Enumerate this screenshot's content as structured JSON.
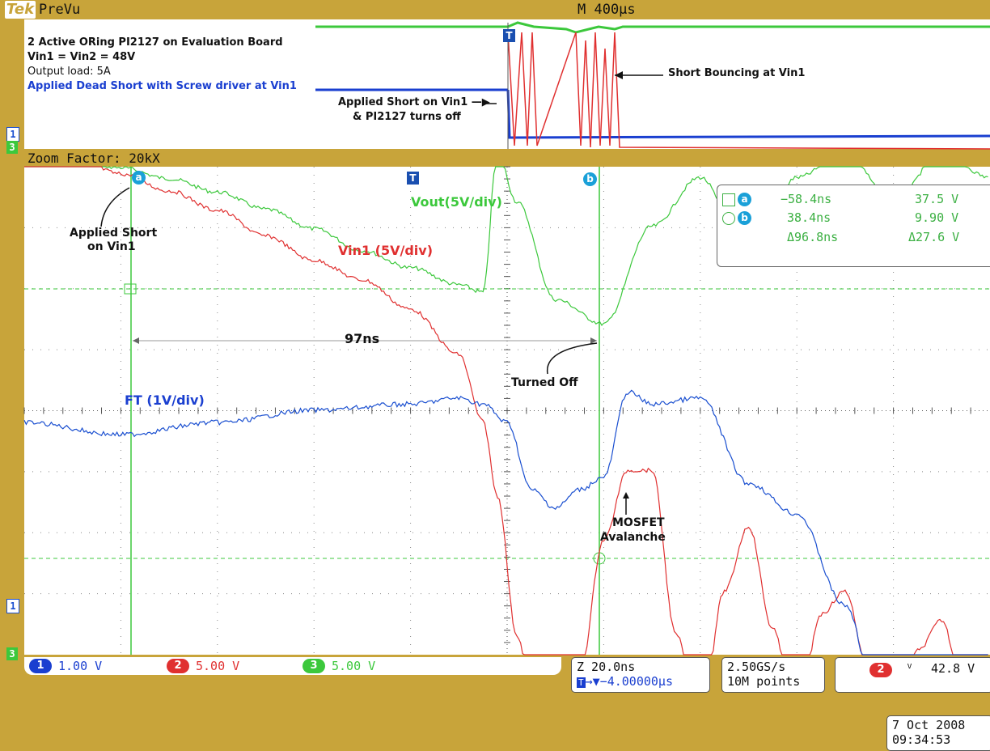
{
  "header": {
    "logo": "Tek",
    "mode": "PreVu",
    "timebase": "M 400µs"
  },
  "preview": {
    "notes": [
      "2 Active ORing PI2127 on Evaluation Board",
      "Vin1 = Vin2 = 48V",
      "Output load: 5A",
      "Applied Dead Short with Screw driver at Vin1"
    ],
    "annotation_short": [
      "Applied Short on Vin1 —▶",
      "& PI2127 turns off"
    ],
    "annotation_bounce": "Short Bouncing at Vin1"
  },
  "zoom_label": "Zoom Factor: 20kX",
  "annotations": {
    "applied_short": [
      "Applied Short",
      "on Vin1"
    ],
    "delay": "97ns",
    "turned_off": "Turned Off",
    "mosfet": [
      "MOSFET",
      "Avalanche"
    ]
  },
  "cursor_readout": {
    "a_marker": "a",
    "b_marker": "b",
    "a_time": "−58.4ns",
    "a_volt": "37.5 V",
    "b_time": "38.4ns",
    "b_volt": "9.90 V",
    "delta_time": "Δ96.8ns",
    "delta_volt": "Δ27.6 V"
  },
  "channels": [
    {
      "id": "1",
      "scale": "1.00 V",
      "color": "#1a4fd0"
    },
    {
      "id": "2",
      "scale": "5.00 V",
      "color": "#e03030"
    },
    {
      "id": "3",
      "scale": "5.00 V",
      "color": "#3cc83c"
    }
  ],
  "horizontal": {
    "zoom_scale": "Z 20.0ns",
    "trigger_pos": "→▼−4.00000µs"
  },
  "acquisition": {
    "rate": "2.50GS/s",
    "points": "10M points"
  },
  "trigger": {
    "channel": "2",
    "slope": "ⱽ",
    "level": "42.8 V"
  },
  "datetime": {
    "date": "7 Oct  2008",
    "time": "09:34:53"
  },
  "chart_data": {
    "type": "line",
    "xlabel": "",
    "ylabel": "",
    "x_unit": "ns",
    "x_per_div": 20,
    "divisions_x": 10,
    "divisions_y": 8,
    "series": [
      {
        "name": "Vout(5V/div)",
        "color": "#3cc83c",
        "x": [
          0,
          10,
          20,
          30,
          40,
          50,
          60,
          70,
          80,
          90,
          95,
          98,
          102,
          110,
          120,
          130,
          140,
          150,
          160,
          170,
          180,
          190,
          200
        ],
        "y": [
          37.8,
          37.5,
          36.8,
          35.9,
          34.8,
          33.4,
          31.8,
          30.0,
          28.6,
          27.2,
          26.6,
          38,
          34,
          26,
          24,
          32,
          36,
          29,
          36,
          38,
          34,
          38,
          36
        ]
      },
      {
        "name": "Vin1 (5V/div)",
        "color": "#e03030",
        "x": [
          0,
          10,
          20,
          30,
          40,
          50,
          60,
          70,
          80,
          90,
          95,
          98,
          102,
          106,
          110,
          115,
          120,
          125,
          130,
          135,
          140,
          145,
          150,
          155,
          160,
          165,
          170,
          175,
          180,
          185,
          190,
          195,
          200
        ],
        "y": [
          37.8,
          37.6,
          36.3,
          34.9,
          33.3,
          31.2,
          29.2,
          27.6,
          25.2,
          21.5,
          16,
          9.9,
          -1.5,
          -8.9,
          -8.9,
          -4.7,
          6.3,
          12.0,
          12.0,
          -1.5,
          -8.7,
          2.1,
          7.4,
          -1.0,
          -8.7,
          0.2,
          2.1,
          -4.8,
          -10.8,
          -2.8,
          -0.3,
          -7.2,
          -6.3
        ]
      },
      {
        "name": "FT (1V/div)",
        "color": "#1a4fd0",
        "x": [
          0,
          20,
          40,
          60,
          80,
          90,
          95,
          100,
          105,
          110,
          115,
          120,
          125,
          130,
          140,
          150,
          160,
          170,
          180,
          190,
          200
        ],
        "y": [
          0,
          -0.2,
          0,
          0.2,
          0.3,
          0.4,
          0.3,
          0,
          -1.1,
          -1.4,
          -1.1,
          -0.9,
          0.5,
          0.3,
          0.4,
          -1.0,
          -1.5,
          -3.0,
          -6.2,
          -5.2,
          -5.8
        ]
      }
    ]
  }
}
